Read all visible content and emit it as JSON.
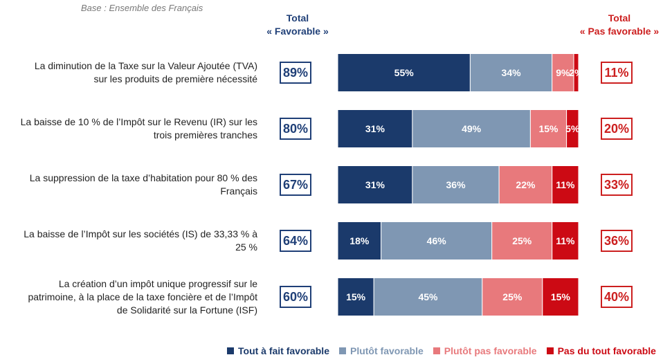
{
  "base_note": "Base : Ensemble des Français",
  "header": {
    "total_favorable": [
      "Total",
      "« Favorable »"
    ],
    "total_pas_favorable": [
      "Total",
      "« Pas favorable »"
    ]
  },
  "colors": {
    "tout_a_fait": "#1b3a6b",
    "plutot_fav": "#7f97b3",
    "plutot_pas": "#e8797c",
    "pas_du_tout": "#cc0a14"
  },
  "chart_data": {
    "type": "bar",
    "orientation": "horizontal",
    "stacked": true,
    "categories": [
      "La diminution de la Taxe sur la Valeur Ajoutée (TVA) sur les produits de première nécessité",
      "La baisse de 10 % de l’Impôt sur le Revenu (IR) sur les trois premières tranches",
      "La suppression de la taxe d’habitation pour 80 % des Français",
      "La baisse de l’Impôt sur les sociétés (IS) de 33,33 % à 25 %",
      "La création d’un impôt unique progressif sur le patrimoine, à la place de la taxe foncière et de l’Impôt de Solidarité sur la Fortune (ISF)"
    ],
    "category_lines": [
      [
        "La diminution de la Taxe sur la Valeur Ajoutée (TVA)",
        "sur les produits de première nécessité"
      ],
      [
        "La baisse de 10 % de l’Impôt sur le Revenu (IR) sur les",
        "trois premières tranches"
      ],
      [
        "La suppression de la taxe d’habitation pour 80 % des",
        "Français"
      ],
      [
        "La baisse de l’Impôt sur les sociétés (IS) de 33,33 % à",
        "25 %"
      ],
      [
        "La création d’un impôt unique progressif sur le",
        "patrimoine, à la place de la taxe foncière et de l’Impôt",
        "de Solidarité sur la Fortune (ISF)"
      ]
    ],
    "series": [
      {
        "name": "Tout à fait favorable",
        "values": [
          55,
          31,
          31,
          18,
          15
        ],
        "labels": [
          "55%",
          "31%",
          "31%",
          "18%",
          "15%"
        ]
      },
      {
        "name": "Plutôt favorable",
        "values": [
          34,
          49,
          36,
          46,
          45
        ],
        "labels": [
          "34%",
          "49%",
          "36%",
          "46%",
          "45%"
        ]
      },
      {
        "name": "Plutôt pas favorable",
        "values": [
          9,
          15,
          22,
          25,
          25
        ],
        "labels": [
          "9%",
          "15%",
          "22%",
          "25%",
          "25%"
        ]
      },
      {
        "name": "Pas du tout favorable",
        "values": [
          2,
          5,
          11,
          11,
          15
        ],
        "labels": [
          "2%",
          "5%",
          "11%",
          "11%",
          "15%"
        ]
      }
    ],
    "total_favorable": [
      "89%",
      "80%",
      "67%",
      "64%",
      "60%"
    ],
    "total_pas_favorable": [
      "11%",
      "20%",
      "33%",
      "36%",
      "40%"
    ],
    "xlim": [
      0,
      100
    ],
    "legend": "bottom"
  }
}
